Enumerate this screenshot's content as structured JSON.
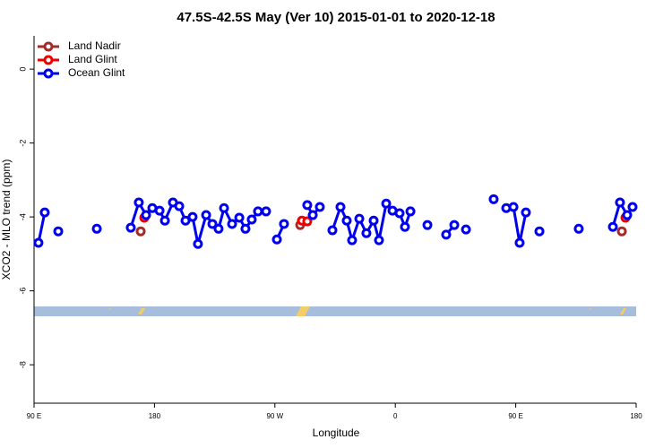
{
  "chart_data": {
    "type": "line",
    "title": "47.5S-42.5S May (Ver 10)   2015-01-01 to 2020-12-18",
    "x_label": "Longitude",
    "y_label": "XCO2 - MLO trend (ppm)",
    "xlim": [
      90,
      540
    ],
    "ylim": [
      -9.04,
      0.9
    ],
    "xticks": [
      {
        "value": 90,
        "label": "90 E"
      },
      {
        "value": 180,
        "label": "180"
      },
      {
        "value": 270,
        "label": "90 W"
      },
      {
        "value": 360,
        "label": "0"
      },
      {
        "value": 450,
        "label": "90 E"
      },
      {
        "value": 540,
        "label": "180"
      }
    ],
    "yticks": [
      -8,
      -6,
      -4,
      -2,
      0
    ],
    "legend": "top-left",
    "series": [
      {
        "name": "Land Nadir",
        "color": "#a52a2a",
        "x": [
          169.7,
          null,
          288.9,
          null,
          529.3
        ],
        "values": [
          -4.39,
          null,
          -4.22,
          null,
          -4.39
        ]
      },
      {
        "name": "Land Glint",
        "color": "#ee0000",
        "x": [
          172.4,
          null,
          290.2,
          294.2,
          null,
          532.0
        ],
        "values": [
          -4.02,
          null,
          -4.1,
          -4.12,
          null,
          -4.02
        ]
      },
      {
        "name": "Ocean Glint",
        "color": "#0000ee",
        "x": [
          93.3,
          98.0,
          null,
          108.1,
          null,
          136.9,
          null,
          162.3,
          168.3,
          173.7,
          178.4,
          183.8,
          187.8,
          193.8,
          198.5,
          203.2,
          208.5,
          212.5,
          218.6,
          223.3,
          227.9,
          232.0,
          238.0,
          243.4,
          248.0,
          252.7,
          257.4,
          263.4,
          null,
          271.5,
          276.8,
          null,
          294.2,
          298.3,
          303.6,
          null,
          313.0,
          319.0,
          323.7,
          327.7,
          333.1,
          338.4,
          343.8,
          347.8,
          353.2,
          357.9,
          363.2,
          367.2,
          371.3,
          null,
          384.0,
          null,
          398.0,
          404.1,
          null,
          412.8,
          null,
          433.5,
          null,
          442.9,
          448.3,
          452.9,
          457.6,
          null,
          467.7,
          null,
          497.1,
          null,
          522.6,
          527.9,
          533.3,
          537.3
        ],
        "values": [
          -4.7,
          -3.88,
          null,
          -4.39,
          null,
          -4.32,
          null,
          -4.29,
          -3.61,
          -3.95,
          -3.76,
          -3.83,
          -4.1,
          -3.61,
          -3.71,
          -4.1,
          -4.0,
          -4.73,
          -3.95,
          -4.19,
          -4.32,
          -3.76,
          -4.19,
          -4.02,
          -4.32,
          -4.07,
          -3.85,
          -3.85,
          null,
          -4.61,
          -4.19,
          null,
          -3.68,
          -3.95,
          -3.73,
          null,
          -4.36,
          -3.73,
          -4.1,
          -4.63,
          -4.05,
          -4.44,
          -4.1,
          -4.63,
          -3.64,
          -3.83,
          -3.9,
          -4.27,
          -3.85,
          null,
          -4.22,
          null,
          -4.48,
          -4.22,
          null,
          -4.34,
          null,
          -3.52,
          null,
          -3.76,
          -3.73,
          -4.7,
          -3.88,
          null,
          -4.39,
          null,
          -4.32,
          null,
          -4.27,
          -3.61,
          -3.95,
          -3.73
        ]
      }
    ]
  }
}
